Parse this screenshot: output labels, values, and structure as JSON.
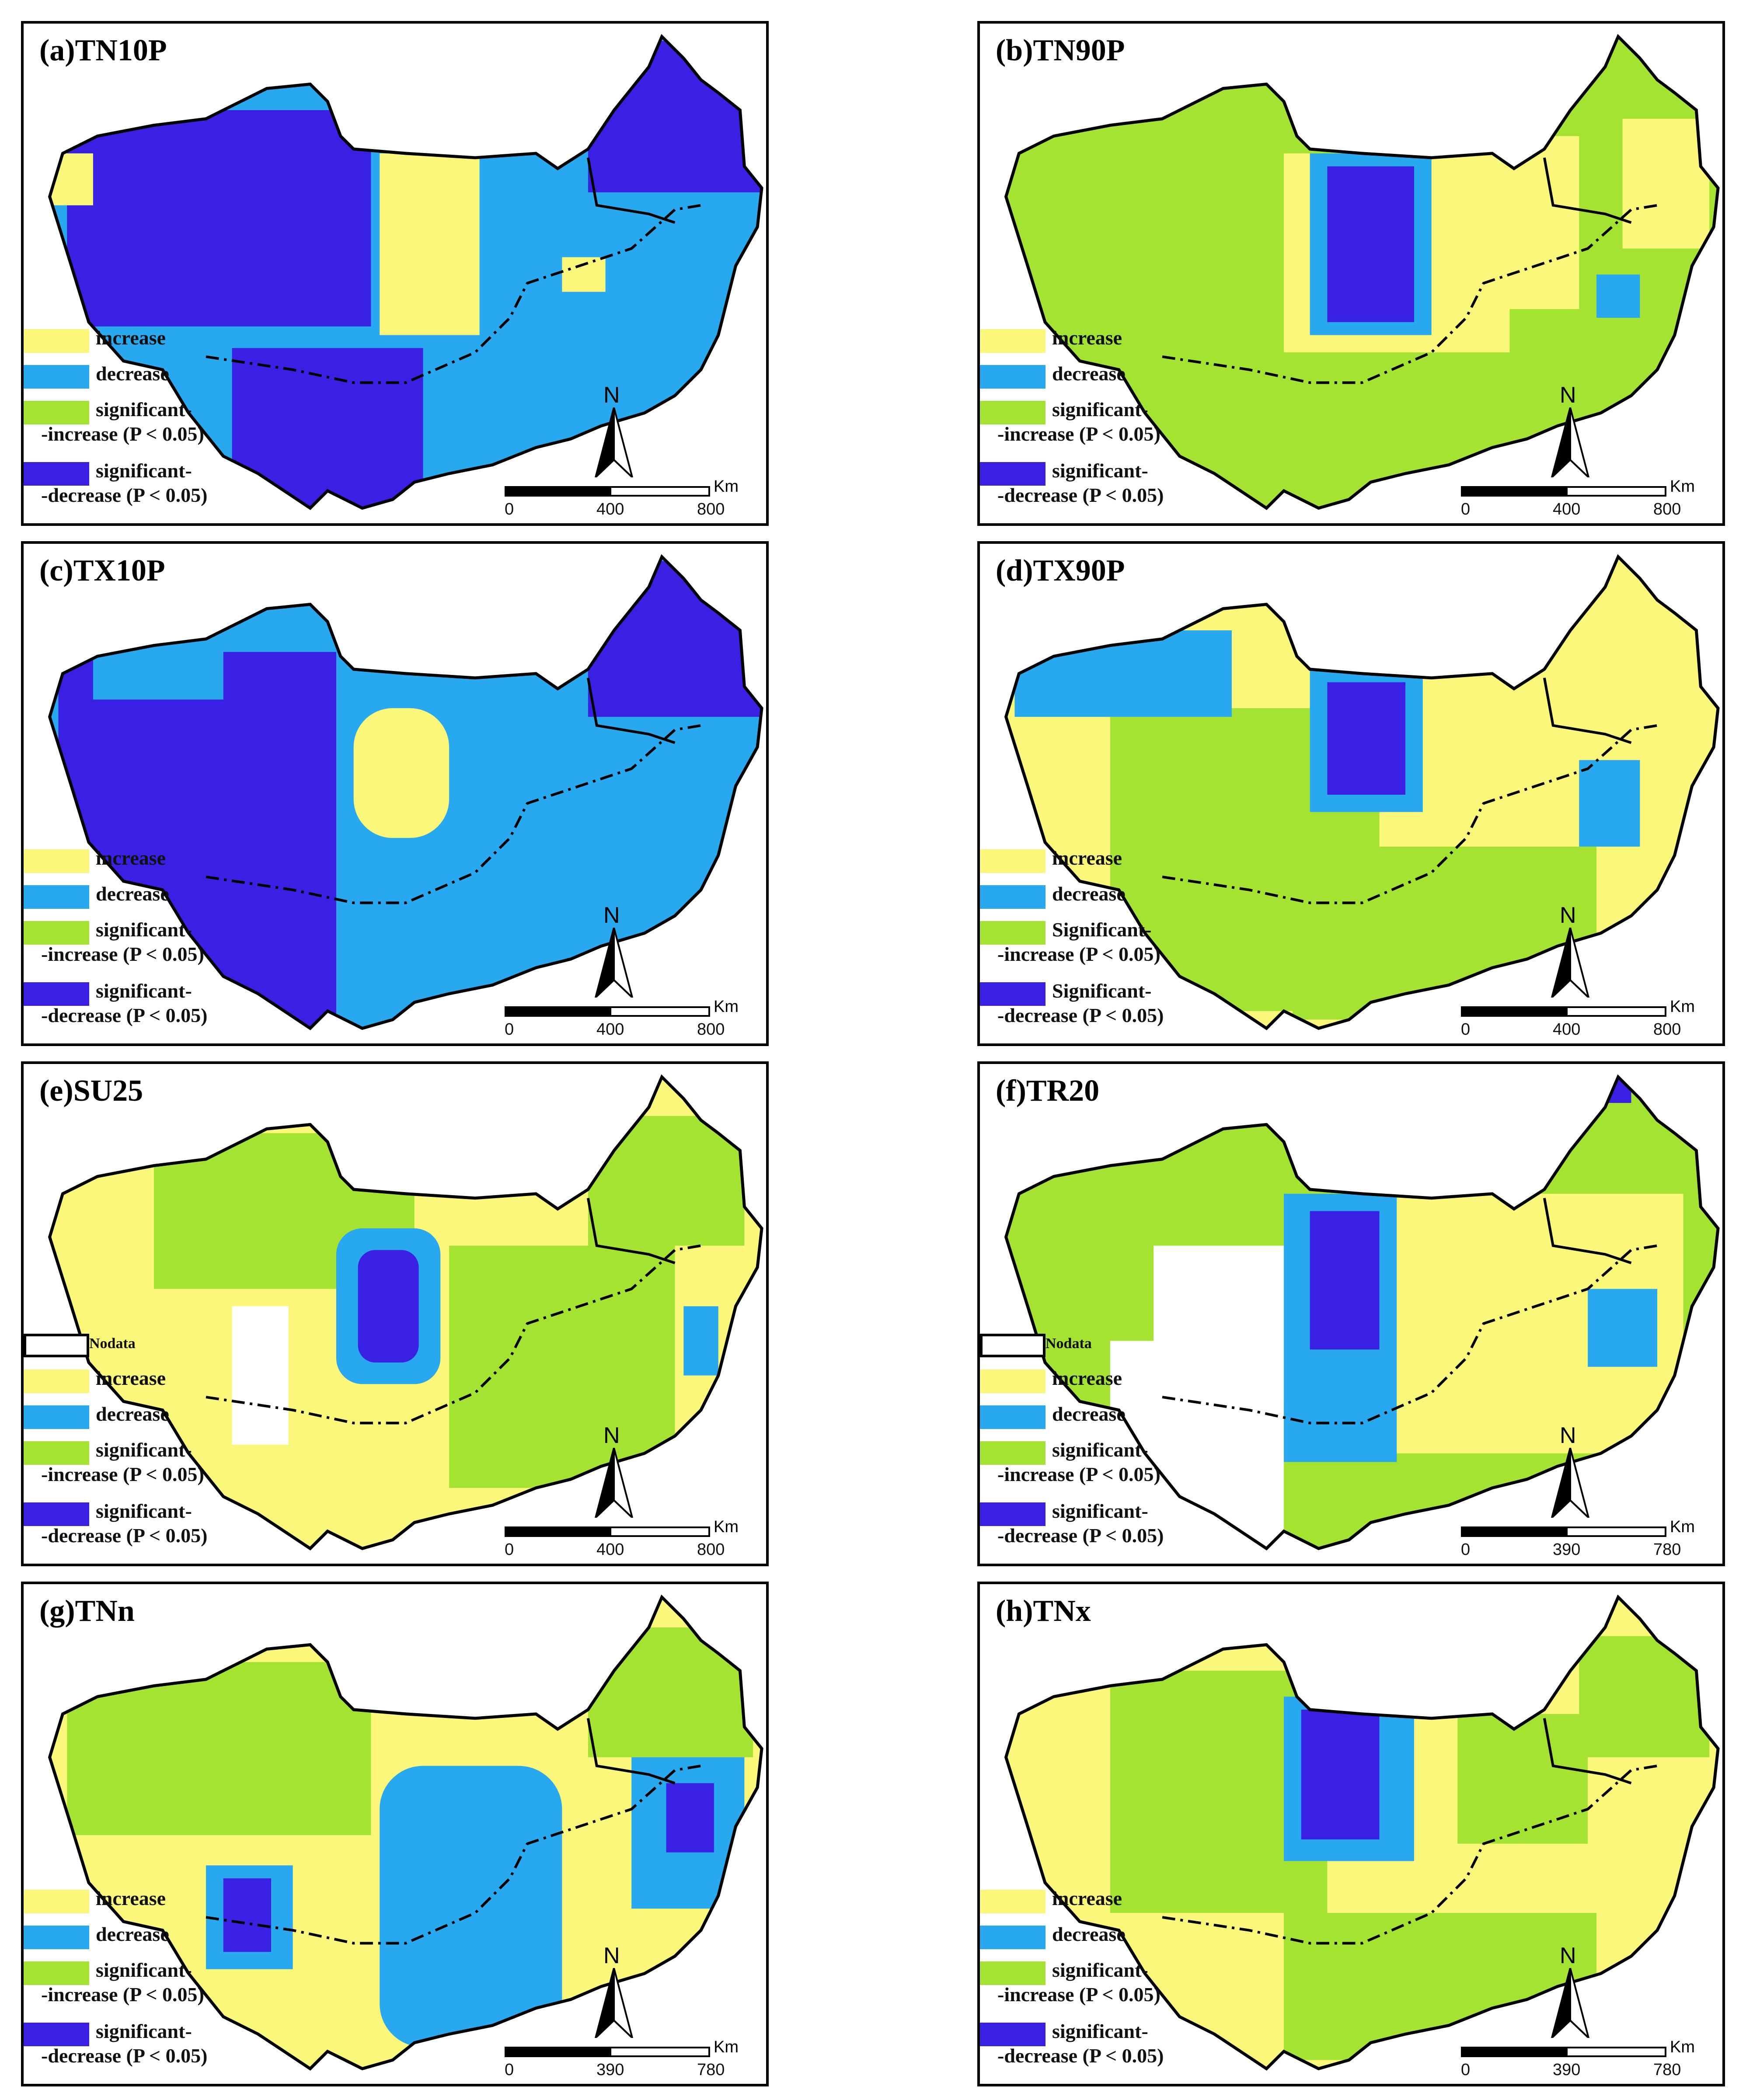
{
  "colors": {
    "increase": "#fbf77a",
    "decrease": "#28a8ef",
    "sig_increase": "#a4e331",
    "sig_decrease": "#3a20e3"
  },
  "panels": [
    {
      "title": "(a)TN10P",
      "legend": {
        "nodata": null,
        "l1": "increase",
        "l2": "decrease",
        "l3a": "significant-",
        "l3b": "-increase (P < 0.05)",
        "l4a": "significant-",
        "l4b": "-decrease (P < 0.05)"
      },
      "north": "N",
      "scale": {
        "t0": "0",
        "t1": "400",
        "t2": "800",
        "unit": "Km"
      }
    },
    {
      "title": "(b)TN90P",
      "legend": {
        "nodata": null,
        "l1": "increase",
        "l2": "decrease",
        "l3a": "significant-",
        "l3b": "-increase (P < 0.05)",
        "l4a": "significant-",
        "l4b": "-decrease (P < 0.05)"
      },
      "north": "N",
      "scale": {
        "t0": "0",
        "t1": "400",
        "t2": "800",
        "unit": "Km"
      }
    },
    {
      "title": "(c)TX10P",
      "legend": {
        "nodata": null,
        "l1": "increase",
        "l2": "decrease",
        "l3a": "significant-",
        "l3b": "-increase (P < 0.05)",
        "l4a": "significant-",
        "l4b": "-decrease (P < 0.05)"
      },
      "north": "N",
      "scale": {
        "t0": "0",
        "t1": "400",
        "t2": "800",
        "unit": "Km"
      }
    },
    {
      "title": "(d)TX90P",
      "legend": {
        "nodata": null,
        "l1": "increase",
        "l2": "decrease",
        "l3a": "Significant-",
        "l3b": "-increase (P < 0.05)",
        "l4a": "Significant-",
        "l4b": "-decrease (P < 0.05)"
      },
      "north": "N",
      "scale": {
        "t0": "0",
        "t1": "400",
        "t2": "800",
        "unit": "Km"
      }
    },
    {
      "title": "(e)SU25",
      "legend": {
        "nodata": "Nodata",
        "l1": "increase",
        "l2": "decrease",
        "l3a": "significant-",
        "l3b": "-increase (P < 0.05)",
        "l4a": "significant-",
        "l4b": "-decrease (P < 0.05)"
      },
      "north": "N",
      "scale": {
        "t0": "0",
        "t1": "400",
        "t2": "800",
        "unit": "Km"
      }
    },
    {
      "title": "(f)TR20",
      "legend": {
        "nodata": "Nodata",
        "l1": "increase",
        "l2": "decrease",
        "l3a": "significant-",
        "l3b": "-increase (P < 0.05)",
        "l4a": "significant-",
        "l4b": "-decrease (P < 0.05)"
      },
      "north": "N",
      "scale": {
        "t0": "0",
        "t1": "390",
        "t2": "780",
        "unit": "Km"
      }
    },
    {
      "title": "(g)TNn",
      "legend": {
        "nodata": null,
        "l1": "increase",
        "l2": "decrease",
        "l3a": "significant-",
        "l3b": "-increase (P < 0.05)",
        "l4a": "significant-",
        "l4b": "-decrease (P < 0.05)"
      },
      "north": "N",
      "scale": {
        "t0": "0",
        "t1": "390",
        "t2": "780",
        "unit": "Km"
      }
    },
    {
      "title": "(h)TNx",
      "legend": {
        "nodata": null,
        "l1": "increase",
        "l2": "decrease",
        "l3a": "significant-",
        "l3b": "-increase (P < 0.05)",
        "l4a": "significant-",
        "l4b": "-decrease (P < 0.05)"
      },
      "north": "N",
      "scale": {
        "t0": "0",
        "t1": "390",
        "t2": "780",
        "unit": "Km"
      }
    }
  ]
}
